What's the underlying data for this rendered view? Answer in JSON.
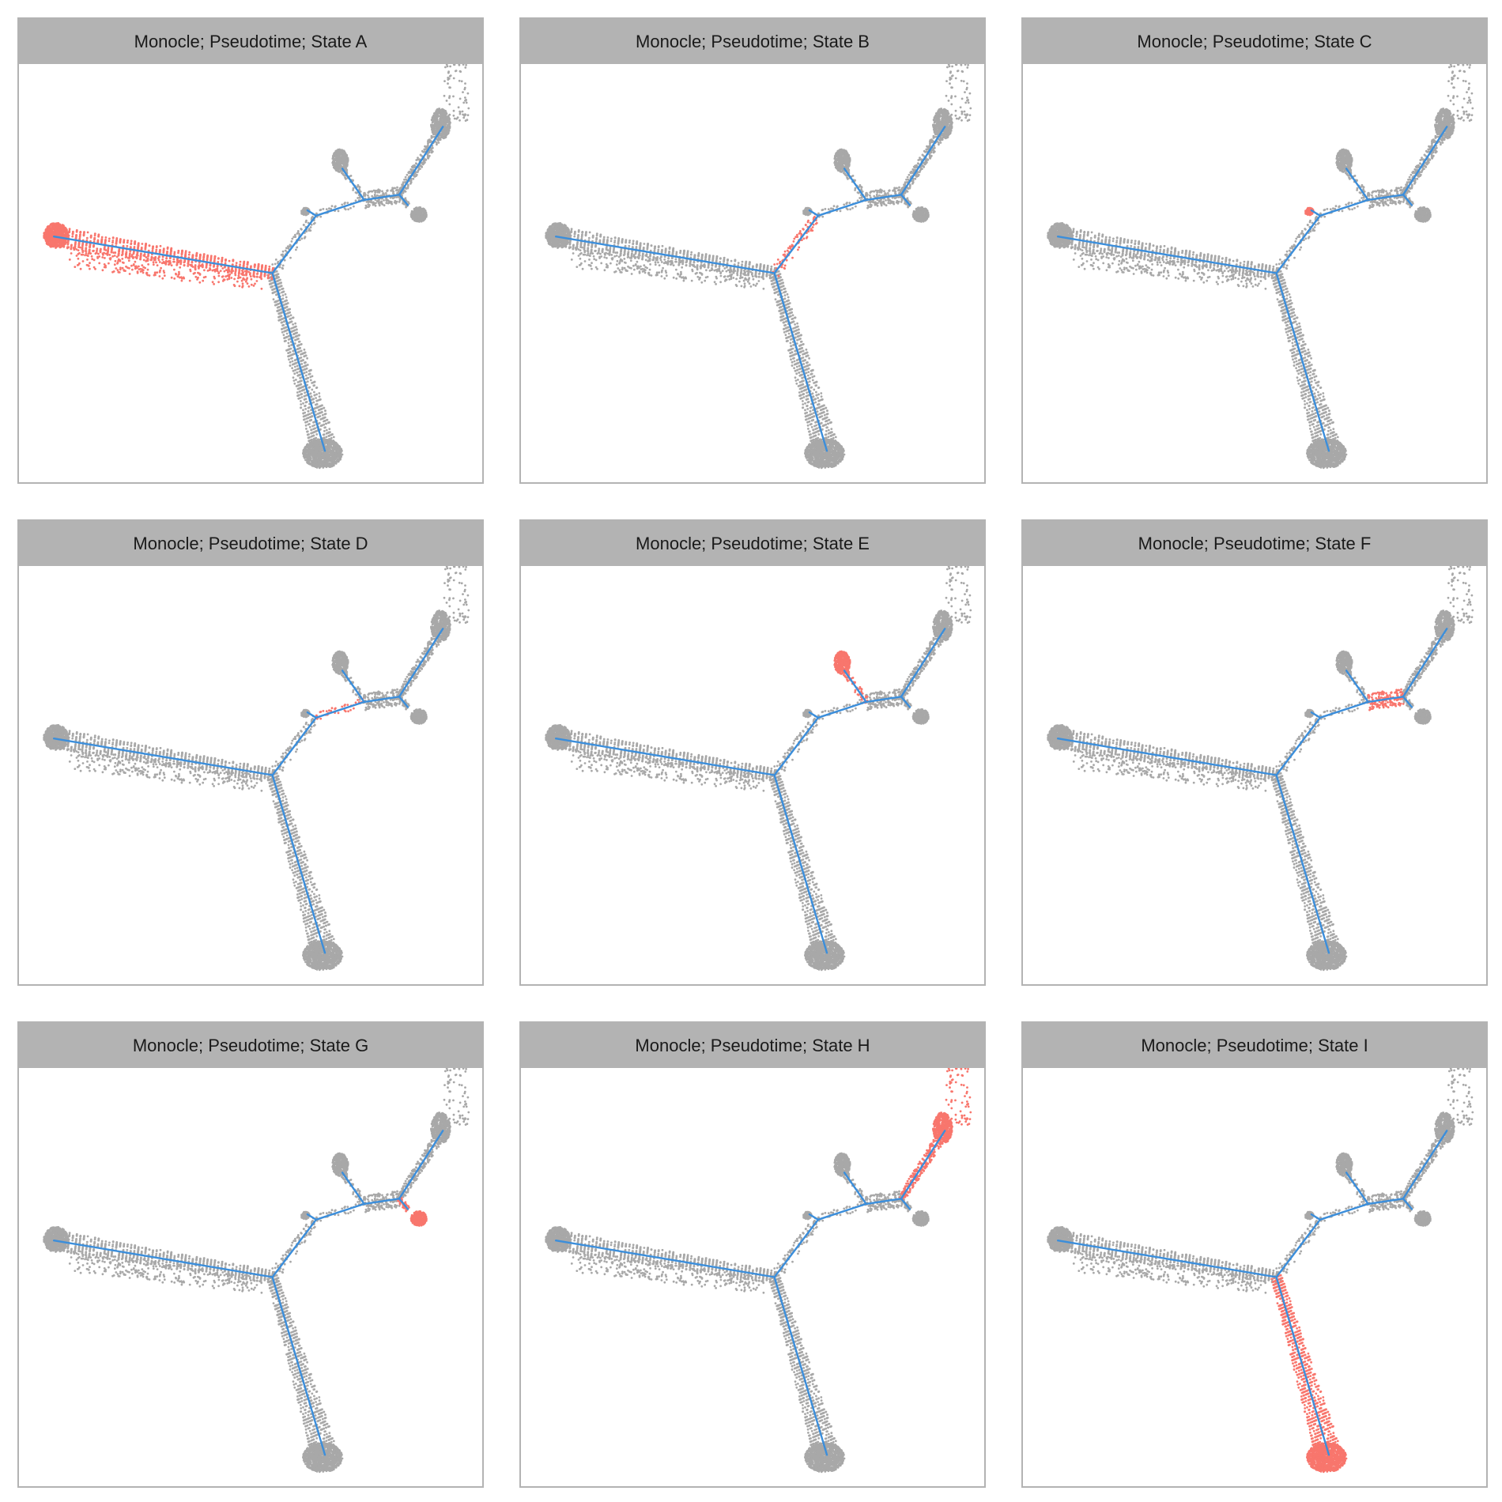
{
  "figure": {
    "colors": {
      "highlight": "#F8766D",
      "background_cells": "#A8A8A8",
      "trajectory": "#3B8EDB",
      "strip": "#B3B3B3",
      "panel_border": "#B3B3B3"
    }
  },
  "chart_data": {
    "type": "scatter",
    "trajectory": {
      "nodes": {
        "root_center": [
          0,
          0
        ],
        "left_tip": [
          -5.0,
          0.7
        ],
        "bottom_tip": [
          1.2,
          -3.4
        ],
        "upper_branch": [
          1.0,
          1.1
        ],
        "upper_fork": [
          2.1,
          1.4
        ],
        "right_fork": [
          2.9,
          1.5
        ],
        "ne_tip": [
          3.9,
          2.8
        ],
        "e_small_tip": [
          3.1,
          1.3
        ],
        "upper_small_tip": [
          1.6,
          2.0
        ],
        "left_small_tip": [
          0.8,
          1.2
        ],
        "e_lobe": [
          3.4,
          1.1
        ]
      },
      "edges": [
        [
          "left_tip",
          "root_center"
        ],
        [
          "root_center",
          "bottom_tip"
        ],
        [
          "root_center",
          "upper_branch"
        ],
        [
          "upper_branch",
          "upper_fork"
        ],
        [
          "upper_fork",
          "right_fork"
        ],
        [
          "right_fork",
          "ne_tip"
        ],
        [
          "right_fork",
          "e_small_tip"
        ],
        [
          "upper_fork",
          "upper_small_tip"
        ],
        [
          "upper_branch",
          "left_small_tip"
        ]
      ]
    },
    "facets": [
      {
        "title": "Monocle; Pseudotime; State A",
        "highlighted_state": "A"
      },
      {
        "title": "Monocle; Pseudotime; State B",
        "highlighted_state": "B"
      },
      {
        "title": "Monocle; Pseudotime; State C",
        "highlighted_state": "C"
      },
      {
        "title": "Monocle; Pseudotime; State D",
        "highlighted_state": "D"
      },
      {
        "title": "Monocle; Pseudotime; State E",
        "highlighted_state": "E"
      },
      {
        "title": "Monocle; Pseudotime; State F",
        "highlighted_state": "F"
      },
      {
        "title": "Monocle; Pseudotime; State G",
        "highlighted_state": "G"
      },
      {
        "title": "Monocle; Pseudotime; State H",
        "highlighted_state": "H"
      },
      {
        "title": "Monocle; Pseudotime; State I",
        "highlighted_state": "I"
      }
    ],
    "xlabel": "",
    "ylabel": "",
    "grid": false,
    "legend": "none"
  }
}
